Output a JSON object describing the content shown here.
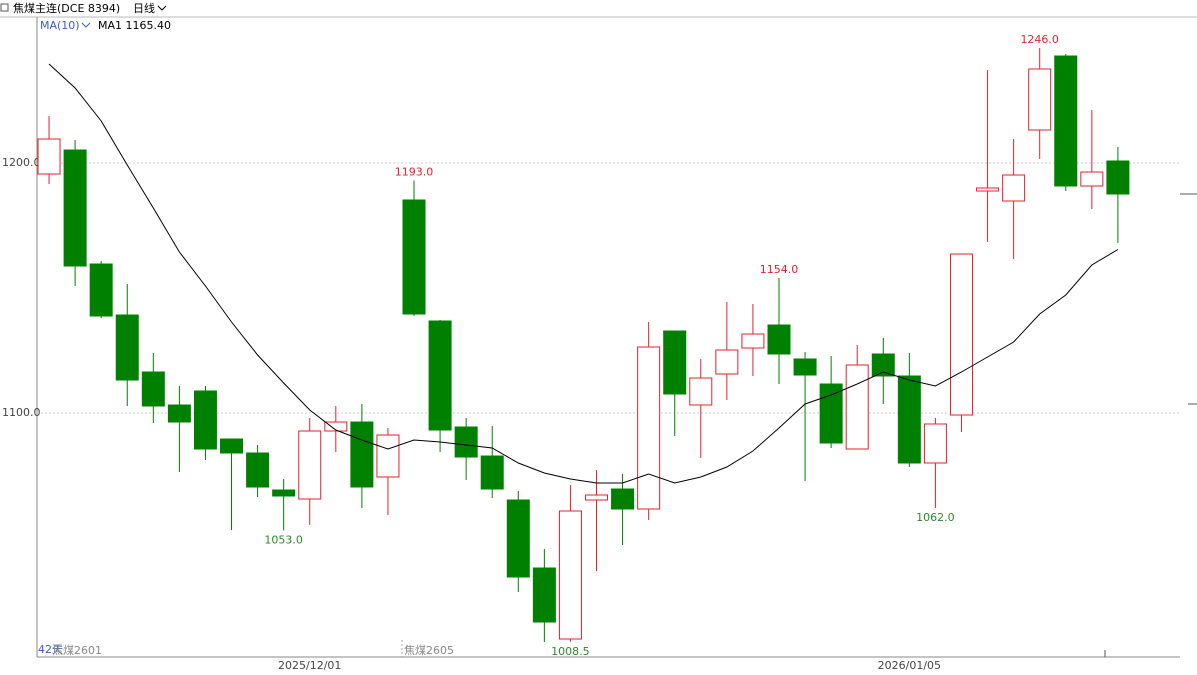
{
  "header": {
    "title": "焦煤主连(DCE 8394)",
    "period": "日线",
    "indicator": "MA(10)",
    "indicator_value": "MA1 1165.40"
  },
  "footer": {
    "days": "42天",
    "contract_a": "焦煤2601",
    "contract_b": "焦煤2605"
  },
  "chart_data": {
    "type": "candlestick",
    "categories": [
      null,
      null,
      null,
      null,
      null,
      null,
      null,
      null,
      null,
      null,
      "2025/12/01",
      null,
      null,
      null,
      null,
      null,
      null,
      null,
      null,
      null,
      null,
      null,
      null,
      null,
      null,
      null,
      null,
      null,
      null,
      null,
      null,
      null,
      null,
      "2026/01/05",
      null,
      null,
      null,
      null,
      null,
      null,
      null,
      null
    ],
    "open": [
      1195.6,
      1205.2,
      1159.6,
      1139.2,
      1116.4,
      1103.2,
      1108.8,
      1089.6,
      1084,
      1069.2,
      1065.6,
      1092.8,
      1096.4,
      1074.4,
      1185.2,
      1136.8,
      1094.4,
      1082.8,
      1065.2,
      1038,
      1009.6,
      1065.2,
      1069.6,
      1061.6,
      1132.8,
      1103.2,
      1115.6,
      1126,
      1135.2,
      1121.6,
      1111.6,
      1085.6,
      1123.6,
      1114.8,
      1080,
      1099.2,
      1188.8,
      1184.8,
      1213.2,
      1242.8,
      1190.8,
      1200.8
    ],
    "high": [
      1218.8,
      1209.2,
      1160.8,
      1151.6,
      1124,
      1110.8,
      1110.8,
      1089.6,
      1087.2,
      1073.6,
      1098,
      1102.8,
      1103.6,
      1094,
      1193,
      1137.2,
      1098,
      1094.8,
      1068.8,
      1045.6,
      1071.2,
      1077.2,
      1075.6,
      1136.4,
      1132.8,
      1121.6,
      1144.4,
      1143.6,
      1154,
      1124.4,
      1122.8,
      1127.2,
      1130,
      1124,
      1098,
      1163.6,
      1237.2,
      1209.6,
      1246,
      1243.6,
      1221.2,
      1206.4
    ],
    "low": [
      1191.6,
      1150.8,
      1138,
      1102.8,
      1096,
      1076.4,
      1081.2,
      1053.2,
      1066.4,
      1053,
      1055.2,
      1084.4,
      1062,
      1059.2,
      1138.8,
      1084.4,
      1073.2,
      1066,
      1028.4,
      1008.4,
      1008.5,
      1036.8,
      1047.2,
      1057.2,
      1090.8,
      1082,
      1105.2,
      1114.8,
      1111.6,
      1072.8,
      1086,
      1085.6,
      1103.6,
      1078.4,
      1062,
      1092.4,
      1168.4,
      1161.6,
      1201.6,
      1188.8,
      1181.6,
      1168
    ],
    "close": [
      1209.6,
      1158.8,
      1138.8,
      1113.2,
      1102.8,
      1096.4,
      1085.6,
      1084,
      1070.4,
      1066.8,
      1092.8,
      1096.4,
      1070.4,
      1091.2,
      1139.6,
      1093.2,
      1082.4,
      1069.6,
      1034.4,
      1016.4,
      1060.8,
      1067.2,
      1061.6,
      1126.4,
      1107.6,
      1114,
      1125.2,
      1131.6,
      1123.6,
      1115.2,
      1088,
      1119.2,
      1114.8,
      1080,
      1095.6,
      1163.6,
      1190,
      1195.2,
      1237.6,
      1190.8,
      1196.4,
      1187.6
    ],
    "high_value_labels": [
      null,
      null,
      null,
      null,
      null,
      null,
      null,
      null,
      null,
      null,
      null,
      null,
      null,
      null,
      "1193.0",
      null,
      null,
      null,
      null,
      null,
      null,
      null,
      null,
      null,
      null,
      null,
      null,
      null,
      "1154.0",
      null,
      null,
      null,
      null,
      null,
      null,
      null,
      null,
      null,
      "1246.0",
      null,
      null,
      null
    ],
    "low_value_labels": [
      null,
      null,
      null,
      null,
      null,
      null,
      null,
      null,
      null,
      "1053.0",
      null,
      null,
      null,
      null,
      null,
      null,
      null,
      null,
      null,
      null,
      "1008.5",
      null,
      null,
      null,
      null,
      null,
      null,
      null,
      null,
      null,
      null,
      null,
      null,
      null,
      "1062.0",
      null,
      null,
      null,
      null,
      null,
      null,
      null
    ],
    "ma": {
      "name": "MA1",
      "color": "#000000",
      "values": [
        1239.6,
        1230,
        1216.8,
        1199.2,
        1182,
        1164.4,
        1150.8,
        1136.4,
        1123.2,
        1112,
        1101.2,
        1093.2,
        1089.2,
        1085.6,
        1089.2,
        1088.4,
        1087.2,
        1086,
        1080,
        1076,
        1073.6,
        1072,
        1072,
        1075.6,
        1072,
        1074.4,
        1078.4,
        1084.8,
        1094,
        1103.6,
        1107.2,
        1111.6,
        1116.4,
        1113.2,
        1110.8,
        1116.4,
        1122.4,
        1128.4,
        1139.6,
        1147.2,
        1159.2,
        1165.4
      ]
    },
    "up_color": "#e8202a",
    "down_color": "#008000",
    "ylim": [
      1002.4,
      1258
    ],
    "yticks": [
      {
        "value": 1100,
        "label": "1100.0"
      },
      {
        "value": 1200,
        "label": "1200.0"
      }
    ],
    "grid": true
  }
}
